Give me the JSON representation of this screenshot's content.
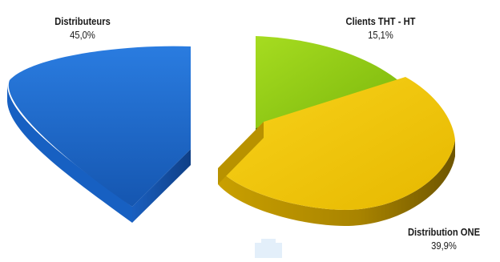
{
  "chart_data": {
    "type": "pie",
    "style": "3d-exploded",
    "slices": [
      {
        "label": "Distributeurs",
        "value": 45.0,
        "value_label": "45,0%",
        "color": "#1b67c9"
      },
      {
        "label": "Clients THT - HT",
        "value": 15.1,
        "value_label": "15,1%",
        "color": "#8fca12"
      },
      {
        "label": "Distribution ONE",
        "value": 39.9,
        "value_label": "39,9%",
        "color": "#f0c400"
      }
    ],
    "legend": "none"
  }
}
